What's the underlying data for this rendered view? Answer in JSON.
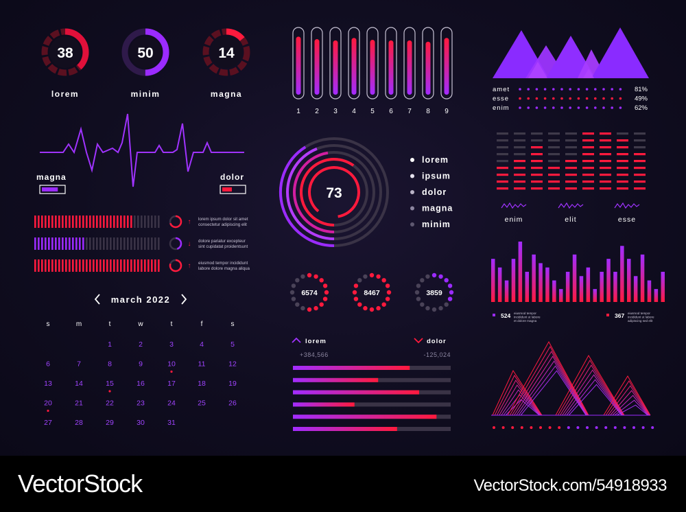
{
  "colors": {
    "purple": "#9b2bff",
    "violet": "#b43cff",
    "red": "#ff1a3d",
    "crimson": "#e0103a",
    "dim": "#3a3346",
    "text_muted": "#8c86a0",
    "calendar_purple": "#a044ff"
  },
  "gauges": [
    {
      "value": "38",
      "label": "lorem",
      "percent": 38,
      "color": "#e0103a"
    },
    {
      "value": "50",
      "label": "minim",
      "percent": 50,
      "color": "#9b2bff"
    },
    {
      "value": "14",
      "label": "magna",
      "percent": 14,
      "color": "#ff1a3d"
    }
  ],
  "waveform": {
    "left_label": "magna",
    "right_label": "dolor",
    "left_level": 0.75,
    "right_level": 0.45
  },
  "progress_rows": [
    {
      "fill": 0.78,
      "color": "#ff1a3d",
      "arrow": "↑",
      "ring_percent": 70,
      "ring_color": "#ff1a3d",
      "text1": "lorem ipsum dolor sit amet",
      "text2": "consectetur adipiscing elit"
    },
    {
      "fill": 0.38,
      "color": "#9b2bff",
      "arrow": "↓",
      "ring_percent": 45,
      "ring_color": "#9b2bff",
      "text1": "dolore pariatur excepteur",
      "text2": "sint cupidatat proidentsunt"
    },
    {
      "fill": 1.0,
      "color": "#ff1a3d",
      "arrow": "↑",
      "ring_percent": 80,
      "ring_color": "#ff1a3d",
      "text1": "eiusmod tempor incididunt",
      "text2": "labore dolore magna aliqua"
    }
  ],
  "calendar": {
    "title": "march 2022",
    "prev_icon": "chevron-left-icon",
    "next_icon": "chevron-right-icon",
    "weekdays": [
      "s",
      "m",
      "t",
      "w",
      "t",
      "f",
      "s"
    ],
    "first_weekday_index": 2,
    "days": 31,
    "marked_days": [
      10,
      15,
      20
    ]
  },
  "vertical_bars": {
    "labels": [
      "1",
      "2",
      "3",
      "4",
      "5",
      "6",
      "7",
      "8",
      "9"
    ],
    "levels": [
      0.92,
      0.88,
      0.86,
      0.9,
      0.87,
      0.86,
      0.86,
      0.84,
      0.9
    ]
  },
  "radial": {
    "center_value": "73",
    "legend": [
      "lorem",
      "ipsum",
      "dolor",
      "magna",
      "minim"
    ]
  },
  "small_dials": [
    {
      "value": "6574",
      "active": 0.55,
      "color": "#ff1a3d"
    },
    {
      "value": "8467",
      "active": 0.85,
      "color": "#ff1a3d"
    },
    {
      "value": "3859",
      "active": 0.35,
      "color": "#9b2bff"
    }
  ],
  "hbars": {
    "left": {
      "label": "lorem",
      "value": "+384,566",
      "icon": "chevron-up-icon"
    },
    "right": {
      "label": "dolor",
      "value": "-125,024",
      "icon": "chevron-down-icon"
    },
    "levels": [
      0.74,
      0.54,
      0.8,
      0.39,
      0.91,
      0.66
    ]
  },
  "mountains": {
    "stats": [
      {
        "label": "amet",
        "value": "81%"
      },
      {
        "label": "esse",
        "value": "49%"
      },
      {
        "label": "enim",
        "value": "62%"
      }
    ]
  },
  "equalizer": {
    "labels": [
      "enim",
      "elit",
      "esse"
    ],
    "active_from": [
      5,
      4,
      2,
      5,
      4,
      0,
      0,
      1,
      3
    ]
  },
  "bar_chart": {
    "values": [
      10,
      8,
      5,
      10,
      14,
      7,
      11,
      9,
      8,
      5,
      3,
      7,
      11,
      6,
      8,
      3,
      7,
      10,
      7,
      13,
      10,
      6,
      11,
      5,
      3,
      7
    ],
    "legend": [
      {
        "value": "524",
        "color": "#9b2bff",
        "text1": "eiusmod tempor",
        "text2": "incididunt ut labore",
        "text3": "et dolore magna"
      },
      {
        "value": "367",
        "color": "#ff1a3d",
        "text1": "eiusmod tempor",
        "text2": "incididunt ut labore",
        "text3": "adipiscing sed elit"
      }
    ]
  },
  "watermark": {
    "left": "VectorStock",
    "right": "VectorStock.com/54918933"
  }
}
